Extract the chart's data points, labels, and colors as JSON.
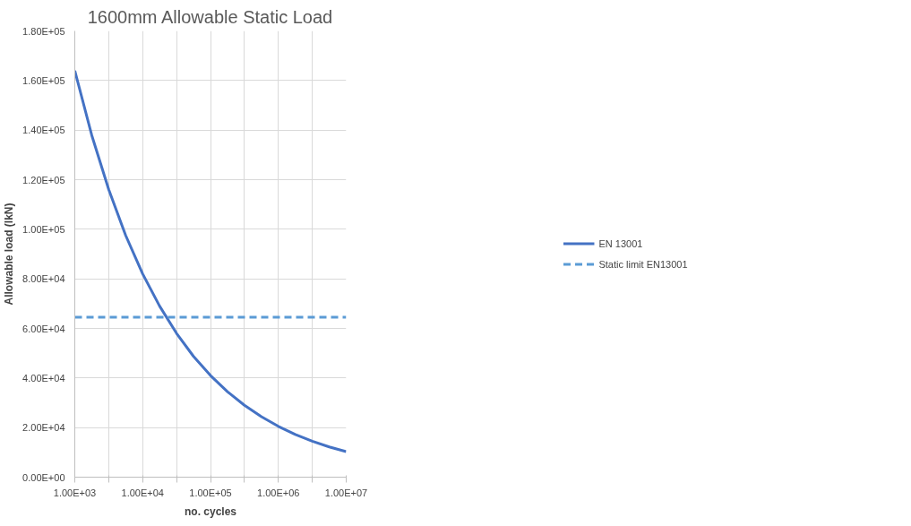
{
  "chart_data": {
    "type": "line",
    "title": "1600mm Allowable Static Load",
    "xlabel": "no. cycles",
    "ylabel": "Allowable load (lkN)",
    "log": "x",
    "x": [
      1000,
      1778,
      3162,
      5623,
      10000,
      17783,
      31623,
      56234,
      100000,
      177828,
      316228,
      562341,
      1000000,
      1778279,
      3162278,
      5623413,
      10000000
    ],
    "series": [
      {
        "name": "EN 13001",
        "color": "#4472c4",
        "values": [
          164000,
          137900,
          116000,
          97500,
          82000,
          69000,
          58000,
          48700,
          41000,
          34500,
          29000,
          24400,
          20500,
          17200,
          14500,
          12200,
          10300
        ]
      }
    ],
    "ref_lines": [
      {
        "axis": "y",
        "value": 64500,
        "label": "Static limit EN13001",
        "color": "#5b9bd5",
        "line_style": "dashed"
      }
    ],
    "xlim": [
      1000,
      10000000
    ],
    "xticks": [
      {
        "value": 1000,
        "label": "1.00E+03"
      },
      {
        "value": 3162,
        "label": null
      },
      {
        "value": 10000,
        "label": "1.00E+04"
      },
      {
        "value": 31623,
        "label": null
      },
      {
        "value": 100000,
        "label": "1.00E+05"
      },
      {
        "value": 316228,
        "label": null
      },
      {
        "value": 1000000,
        "label": "1.00E+06"
      },
      {
        "value": 3162278,
        "label": null
      },
      {
        "value": 10000000,
        "label": "1.00E+07"
      }
    ],
    "ylim": [
      0,
      180000
    ],
    "yticks": [
      {
        "value": 0,
        "label": "0.00E+00"
      },
      {
        "value": 20000,
        "label": "2.00E+04"
      },
      {
        "value": 40000,
        "label": "4.00E+04"
      },
      {
        "value": 60000,
        "label": "6.00E+04"
      },
      {
        "value": 80000,
        "label": "8.00E+04"
      },
      {
        "value": 100000,
        "label": "1.00E+05"
      },
      {
        "value": 120000,
        "label": "1.20E+05"
      },
      {
        "value": 140000,
        "label": "1.40E+05"
      },
      {
        "value": 160000,
        "label": "1.60E+05"
      },
      {
        "value": 180000,
        "label": "1.80E+05"
      }
    ],
    "grid": true,
    "legend": "right",
    "line_style": "solid",
    "marker": "none"
  }
}
